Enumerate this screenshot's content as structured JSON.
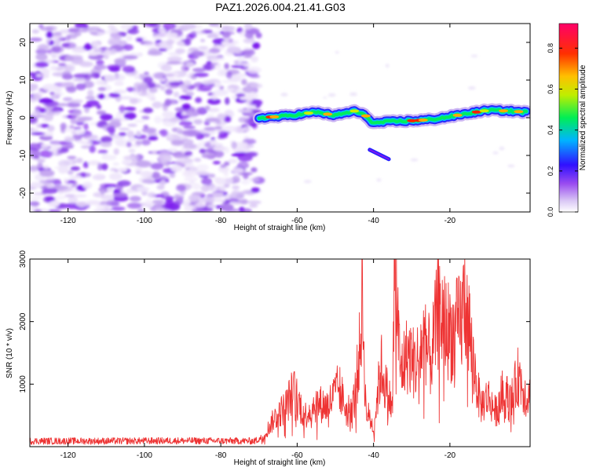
{
  "figure_title": "PAZ1.2026.004.21.41.G03",
  "chart_data": [
    {
      "type": "heatmap",
      "title": "PAZ1.2026.004.21.41.G03",
      "xlabel": "Height of straight line (km)",
      "ylabel": "Frequency (Hz)",
      "xlim": [
        -130,
        1
      ],
      "ylim": [
        -25,
        25
      ],
      "xticks": [
        -120,
        -100,
        -80,
        -60,
        -40,
        -20
      ],
      "yticks": [
        -20,
        -10,
        0,
        10,
        20
      ],
      "noise_region_x": [
        -130,
        -70
      ],
      "ridge": {
        "x": [
          -70,
          -65,
          -60,
          -55,
          -50,
          -45,
          -42,
          -40,
          -38,
          -35,
          -30,
          -25,
          -20,
          -15,
          -10,
          -5,
          0
        ],
        "freq": [
          0.0,
          0.3,
          0.8,
          1.5,
          0.6,
          1.8,
          0.5,
          -1.5,
          -1.2,
          -1.0,
          -0.8,
          -0.5,
          0.3,
          1.2,
          2.0,
          1.8,
          1.5
        ]
      },
      "secondary_feature": {
        "x": [
          -41,
          -36
        ],
        "freq": [
          -8.5,
          -11.0
        ]
      },
      "colorbar": {
        "label": "Normalized spectral amplitude",
        "range": [
          0.0,
          0.92
        ],
        "ticks": [
          0.0,
          0.2,
          0.4,
          0.6,
          0.8
        ],
        "tick_labels": [
          "0.0",
          "0.2",
          "0.4",
          "0.6",
          "0.8"
        ],
        "colors": [
          "#ffffff",
          "#c8a8f0",
          "#7a18ee",
          "#2020ff",
          "#00c8ff",
          "#00ee55",
          "#ccee00",
          "#ffaa00",
          "#ff2000",
          "#ff0066"
        ]
      }
    },
    {
      "type": "line",
      "xlabel": "Height of straight line (km)",
      "ylabel": "SNR (10 * v/v)",
      "xlim": [
        -130,
        1
      ],
      "ylim": [
        0,
        3000
      ],
      "xticks": [
        -120,
        -100,
        -80,
        -60,
        -40,
        -20
      ],
      "yticks": [
        1000,
        2000,
        3000
      ],
      "color": "#ee3333",
      "x": [
        -130,
        -110,
        -90,
        -71,
        -69,
        -66,
        -63,
        -61,
        -58,
        -55,
        -52,
        -49,
        -47,
        -45,
        -43.5,
        -43,
        -42,
        -40,
        -38,
        -37,
        -35,
        -34.5,
        -33,
        -31,
        -29,
        -27,
        -25,
        -23,
        -21,
        -19,
        -17,
        -16,
        -14,
        -12,
        -10,
        -8,
        -6,
        -4,
        -2,
        0
      ],
      "value": [
        90,
        90,
        95,
        90,
        150,
        450,
        650,
        900,
        500,
        700,
        650,
        950,
        550,
        750,
        1600,
        2500,
        600,
        300,
        1300,
        1000,
        600,
        3050,
        1200,
        1500,
        1300,
        1700,
        1400,
        2200,
        1900,
        1800,
        2000,
        2450,
        1400,
        650,
        800,
        550,
        900,
        700,
        1150,
        800
      ]
    }
  ]
}
